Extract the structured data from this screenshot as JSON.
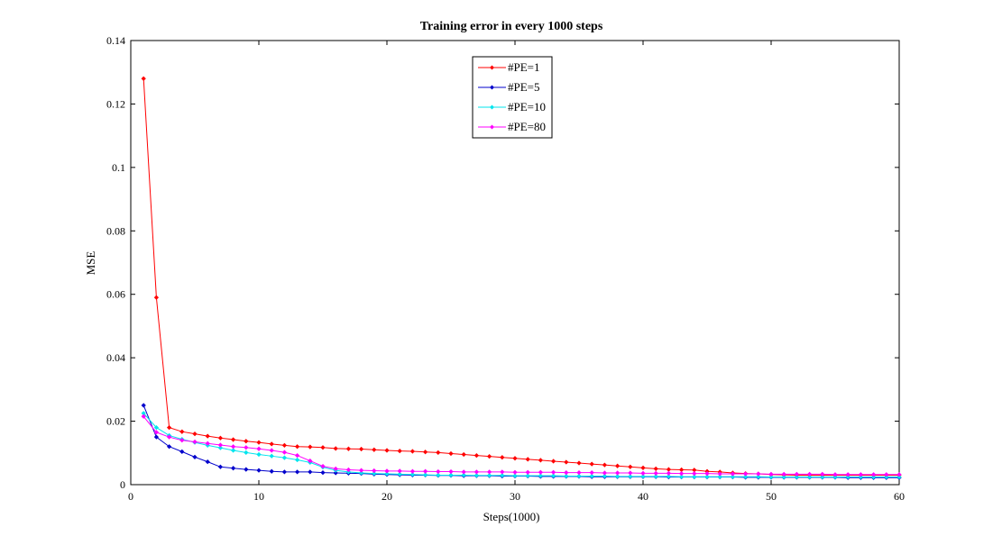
{
  "chart_data": {
    "type": "line",
    "title": "Training error in every 1000 steps",
    "xlabel": "Steps(1000)",
    "ylabel": "MSE",
    "xlim": [
      0,
      60
    ],
    "ylim": [
      0,
      0.14
    ],
    "xticks": [
      0,
      10,
      20,
      30,
      40,
      50,
      60
    ],
    "yticks": [
      0,
      0.02,
      0.04,
      0.06,
      0.08,
      0.1,
      0.12,
      0.14
    ],
    "ytick_labels": [
      "0",
      "0.02",
      "0.04",
      "0.06",
      "0.08",
      "0.1",
      "0.12",
      "0.14"
    ],
    "grid": false,
    "legend_position": "top-center",
    "x": [
      1,
      2,
      3,
      4,
      5,
      6,
      7,
      8,
      9,
      10,
      11,
      12,
      13,
      14,
      15,
      16,
      17,
      18,
      19,
      20,
      21,
      22,
      23,
      24,
      25,
      26,
      27,
      28,
      29,
      30,
      31,
      32,
      33,
      34,
      35,
      36,
      37,
      38,
      39,
      40,
      41,
      42,
      43,
      44,
      45,
      46,
      47,
      48,
      49,
      50,
      51,
      52,
      53,
      54,
      55,
      56,
      57,
      58,
      59,
      60
    ],
    "series": [
      {
        "name": "#PE=1",
        "color": "#ff0000",
        "values": [
          0.128,
          0.059,
          0.018,
          0.0167,
          0.016,
          0.0153,
          0.0147,
          0.0142,
          0.0137,
          0.0133,
          0.0128,
          0.0124,
          0.012,
          0.0119,
          0.0117,
          0.0114,
          0.0113,
          0.0112,
          0.011,
          0.0108,
          0.0106,
          0.0105,
          0.0103,
          0.0101,
          0.0098,
          0.0095,
          0.0092,
          0.0089,
          0.0086,
          0.0083,
          0.008,
          0.0077,
          0.0074,
          0.0071,
          0.0068,
          0.0065,
          0.0062,
          0.0059,
          0.0056,
          0.0053,
          0.005,
          0.0048,
          0.0047,
          0.0046,
          0.0042,
          0.004,
          0.0037,
          0.0035,
          0.0034,
          0.0032,
          0.0031,
          0.003,
          0.003,
          0.003,
          0.003,
          0.003,
          0.003,
          0.003,
          0.003,
          0.003
        ]
      },
      {
        "name": "#PE=5",
        "color": "#0000cc",
        "values": [
          0.025,
          0.015,
          0.012,
          0.0104,
          0.0087,
          0.0072,
          0.0056,
          0.0052,
          0.0048,
          0.0045,
          0.0042,
          0.004,
          0.004,
          0.004,
          0.0038,
          0.0037,
          0.0036,
          0.0035,
          0.0033,
          0.0032,
          0.0031,
          0.003,
          0.003,
          0.0029,
          0.0029,
          0.0028,
          0.0028,
          0.0028,
          0.0027,
          0.0027,
          0.0027,
          0.0026,
          0.0026,
          0.0026,
          0.0026,
          0.0025,
          0.0025,
          0.0025,
          0.0025,
          0.0025,
          0.0025,
          0.0024,
          0.0024,
          0.0024,
          0.0024,
          0.0024,
          0.0024,
          0.0023,
          0.0023,
          0.0023,
          0.0023,
          0.0023,
          0.0023,
          0.0023,
          0.0023,
          0.0022,
          0.0022,
          0.0022,
          0.0022,
          0.0022
        ]
      },
      {
        "name": "#PE=10",
        "color": "#00e5ee",
        "values": [
          0.0225,
          0.018,
          0.0155,
          0.0143,
          0.0133,
          0.0124,
          0.0116,
          0.0108,
          0.0101,
          0.0095,
          0.009,
          0.0085,
          0.0078,
          0.007,
          0.0055,
          0.0045,
          0.004,
          0.0037,
          0.0035,
          0.0034,
          0.0033,
          0.0032,
          0.0031,
          0.003,
          0.003,
          0.003,
          0.0029,
          0.0029,
          0.0029,
          0.0028,
          0.0028,
          0.0028,
          0.0028,
          0.0027,
          0.0027,
          0.0027,
          0.0027,
          0.0026,
          0.0026,
          0.0026,
          0.0026,
          0.0026,
          0.0025,
          0.0025,
          0.0025,
          0.0025,
          0.0025,
          0.0025,
          0.0025,
          0.0024,
          0.0024,
          0.0024,
          0.0024,
          0.0024,
          0.0024,
          0.0024,
          0.0024,
          0.0024,
          0.0024,
          0.0024
        ]
      },
      {
        "name": "#PE=80",
        "color": "#ff00ff",
        "values": [
          0.0215,
          0.0165,
          0.015,
          0.014,
          0.0135,
          0.013,
          0.0125,
          0.012,
          0.0117,
          0.0113,
          0.0108,
          0.0102,
          0.0092,
          0.0075,
          0.0058,
          0.005,
          0.0047,
          0.0045,
          0.0044,
          0.0043,
          0.0043,
          0.0042,
          0.0042,
          0.0041,
          0.0041,
          0.004,
          0.004,
          0.004,
          0.004,
          0.0039,
          0.0039,
          0.0039,
          0.0039,
          0.0038,
          0.0038,
          0.0038,
          0.0037,
          0.0037,
          0.0037,
          0.0036,
          0.0036,
          0.0036,
          0.0035,
          0.0035,
          0.0035,
          0.0034,
          0.0034,
          0.0034,
          0.0034,
          0.0033,
          0.0033,
          0.0033,
          0.0033,
          0.0033,
          0.0032,
          0.0032,
          0.0032,
          0.0032,
          0.0032,
          0.0032
        ]
      }
    ]
  }
}
